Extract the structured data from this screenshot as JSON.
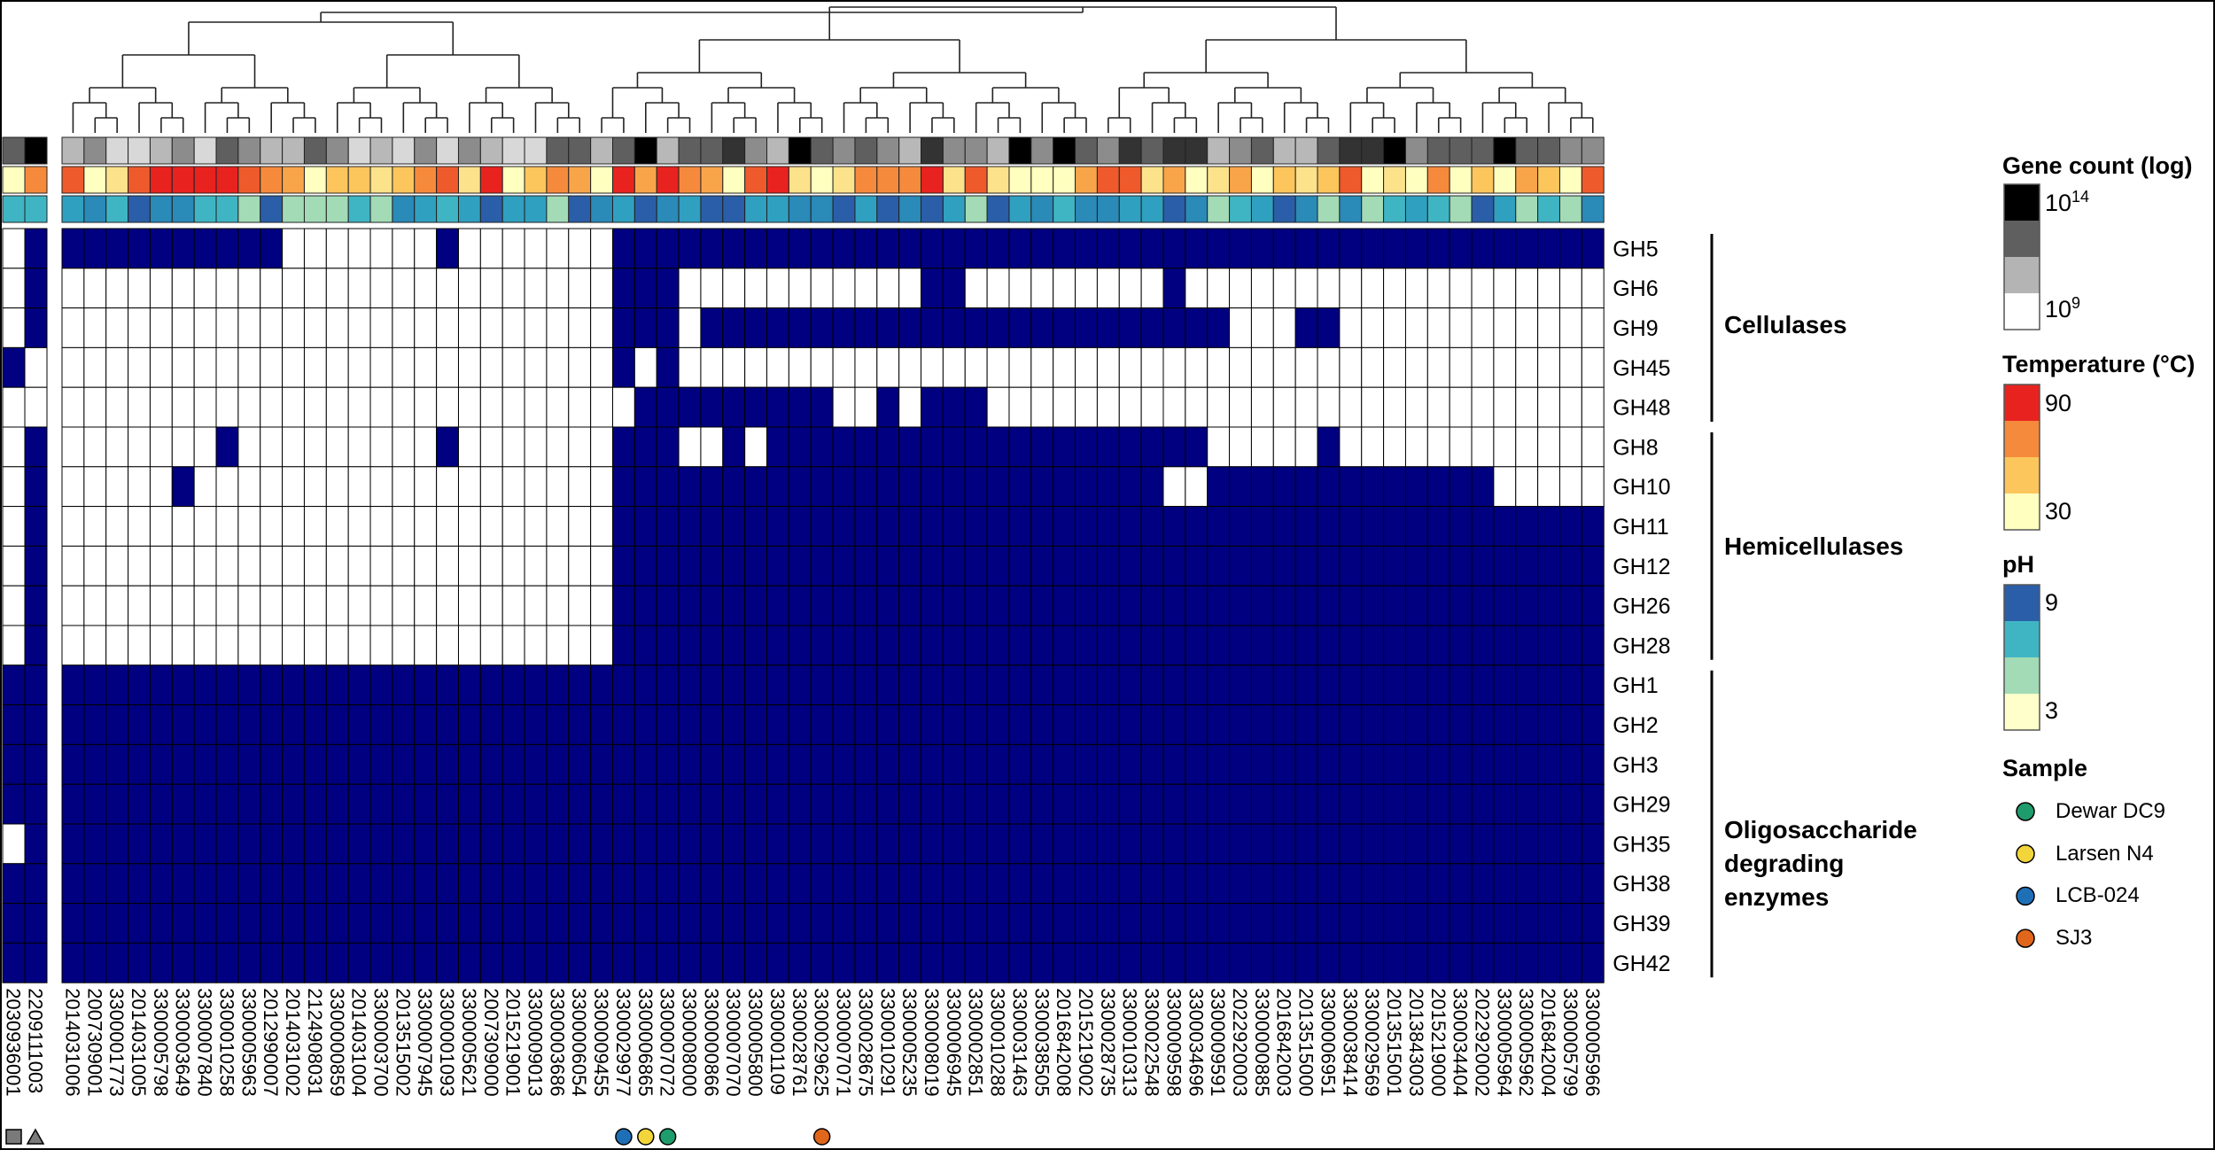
{
  "chart_data": {
    "type": "heatmap",
    "title": "",
    "rows": [
      "GH5",
      "GH6",
      "GH9",
      "GH45",
      "GH48",
      "GH8",
      "GH10",
      "GH11",
      "GH12",
      "GH26",
      "GH28",
      "GH1",
      "GH2",
      "GH3",
      "GH29",
      "GH35",
      "GH38",
      "GH39",
      "GH42"
    ],
    "outgroup_columns": [
      "2030936001",
      "2209111003"
    ],
    "outgroup_markers": [
      "square",
      "triangle"
    ],
    "columns": [
      "2014031006",
      "2007309001",
      "3300001773",
      "2014031005",
      "3300005798",
      "3300003649",
      "3300007840",
      "3300010258",
      "3300005963",
      "2012990007",
      "2014031002",
      "2124908031",
      "3300000859",
      "2014031004",
      "3300003700",
      "2013515002",
      "3300007945",
      "3300001093",
      "3300005621",
      "2007309000",
      "2015219001",
      "3300009013",
      "3300003686",
      "3300006054",
      "3300009455",
      "3300029977",
      "3300006865",
      "3300007072",
      "3300008000",
      "3300000866",
      "3300007070",
      "3300005800",
      "3300001109",
      "3300028761",
      "3300029625",
      "3300007071",
      "3300028675",
      "3300010291",
      "3300005235",
      "3300008019",
      "3300006945",
      "3300002851",
      "3300010288",
      "3300031463",
      "3300038505",
      "2016842008",
      "2015219002",
      "3300028735",
      "3300010313",
      "3300022548",
      "3300009598",
      "3300034696",
      "3300009591",
      "2022920003",
      "3300000885",
      "2016842003",
      "2013515000",
      "3300006951",
      "3300038414",
      "3300029569",
      "2013515001",
      "2013843003",
      "2015219000",
      "3300034404",
      "2022920002",
      "3300005964",
      "3300005962",
      "2016842004",
      "3300005799",
      "3300005966"
    ],
    "presence_rows": [
      "1111111111000000010000000111111111111111111111111111111111111111111111",
      "0000000000000000000000000111000000000001100000000010000000000000000000",
      "0000000000000000000000000111011111111111111111111111100011000000000000",
      "0000000000000000000000000101000000000000000000000000000000000000000000",
      "0000000000000000000000000011111111100101110000000000000000000000000000",
      "0000000100000000010000000111001011111111111111111111000001000000000000",
      "0000010000000000000000000111111111111111111111111100111111111111100000",
      "0000000000000000000000000111111111111111111111111111111111111111111111",
      "0000000000000000000000000111111111111111111111111111111111111111111111",
      "0000000000000000000000000111111111111111111111111111111111111111111111",
      "0000000000000000000000000111111111111111111111111111111111111111111111",
      "1111111111111111111111111111111111111111111111111111111111111111111111",
      "1111111111111111111111111111111111111111111111111111111111111111111111",
      "1111111111111111111111111111111111111111111111111111111111111111111111",
      "1111111111111111111111111111111111111111111111111111111111111111111111",
      "1111111111111111111111111111111111111111111111111111111111111111111111",
      "1111111111111111111111111111111111111111111111111111111111111111111111",
      "1111111111111111111111111111111111111111111111111111111111111111111111",
      "1111111111111111111111111111111111111111111111111111111111111111111111"
    ],
    "outgroup_presence_rows": [
      "01",
      "01",
      "01",
      "10",
      "00",
      "01",
      "01",
      "01",
      "01",
      "01",
      "01",
      "11",
      "11",
      "11",
      "11",
      "01",
      "11",
      "11",
      "11"
    ],
    "gene_count_level": "0101111000000000000000000000000000000000000000000000000000000000000000",
    "temperature_level": "2121222321122121123322212000010111010101000000000000000000000000000000",
    "ph_level": "0020000000000000000000000000000000000000000000000000000000000000000000",
    "row_groups": [
      {
        "label": "Cellulases",
        "rows": [
          "GH5",
          "GH6",
          "GH9",
          "GH45",
          "GH48"
        ]
      },
      {
        "label": "Hemicellulases",
        "rows": [
          "GH8",
          "GH10",
          "GH11",
          "GH12",
          "GH26",
          "GH28"
        ]
      },
      {
        "label": "Oligosaccharide degrading enzymes",
        "rows": [
          "GH1",
          "GH2",
          "GH3",
          "GH29",
          "GH35",
          "GH38",
          "GH39",
          "GH42"
        ]
      }
    ],
    "sample_markers": [
      {
        "column": "3300029977",
        "sample": "LCB-024"
      },
      {
        "column": "3300006865",
        "sample": "Larsen N4"
      },
      {
        "column": "3300007072",
        "sample": "Dewar DC9"
      },
      {
        "column": "3300029625",
        "sample": "SJ3"
      }
    ],
    "legend": {
      "gene_count": {
        "title": "Gene count (log)",
        "max_base": "10",
        "max_exp": "14",
        "min_base": "10",
        "min_exp": "9",
        "colors": [
          "#000000",
          "#5f5f5f",
          "#b4b4b4",
          "#ffffff"
        ]
      },
      "temperature": {
        "title": "Temperature (°C)",
        "max": "90",
        "min": "30",
        "colors": [
          "#e8231f",
          "#f68a3c",
          "#fcc65c",
          "#ffffc0"
        ]
      },
      "ph": {
        "title": "pH",
        "max": "9",
        "min": "3",
        "colors": [
          "#2a5ea8",
          "#3fb5c4",
          "#a2dbb6",
          "#ffffcc"
        ]
      },
      "sample": {
        "title": "Sample",
        "items": [
          {
            "name": "Dewar DC9",
            "color": "#1e9c6c"
          },
          {
            "name": "Larsen N4",
            "color": "#f2d53a"
          },
          {
            "name": "LCB-024",
            "color": "#1f6fb7"
          },
          {
            "name": "SJ3",
            "color": "#e0661c"
          }
        ]
      }
    },
    "presence_color": "#000080",
    "absence_color": "#ffffff"
  }
}
